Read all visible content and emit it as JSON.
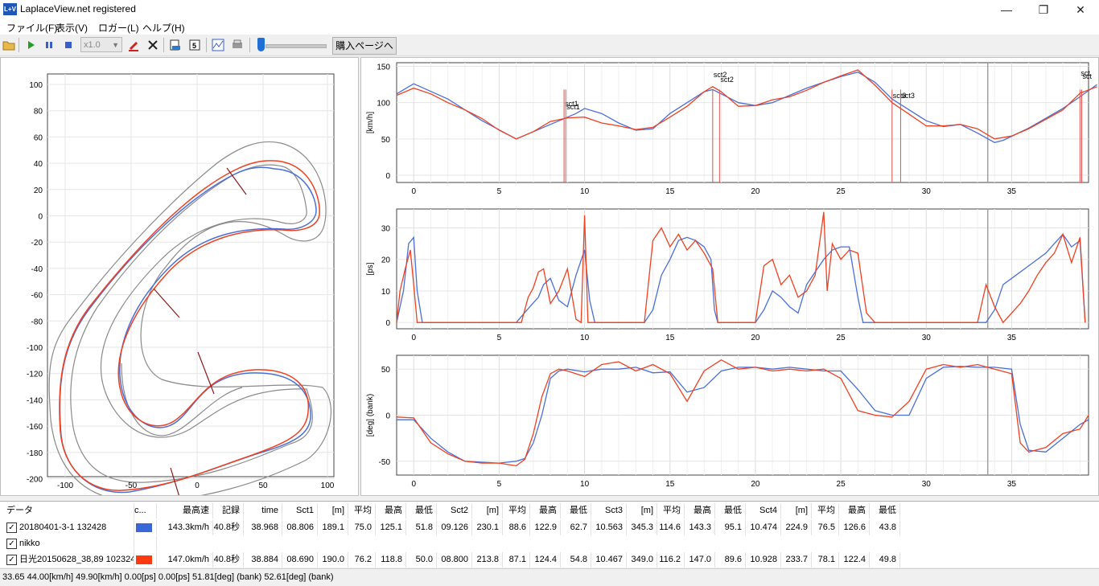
{
  "app": {
    "title": "LaplaceView.net registered",
    "icon_text": "L+V",
    "buttons": {
      "minimize": "—",
      "maximize": "❐",
      "close": "✕"
    }
  },
  "menu": [
    "ファイル(F)",
    "表示(V)",
    "ロガー(L)",
    "ヘルプ(H)"
  ],
  "toolbar": {
    "speed_value": "x1.0",
    "buy_label": "購入ページへ",
    "icons": [
      "open-folder-icon",
      "play-icon",
      "pause-icon",
      "stop-icon",
      "pen-icon",
      "delete-icon",
      "export-icon",
      "sector-icon",
      "chart-icon",
      "print-icon"
    ]
  },
  "map_chart": {
    "y_ticks": [
      "100",
      "80",
      "60",
      "40",
      "20",
      "0",
      "-20",
      "-40",
      "-60",
      "-80",
      "-100",
      "-120",
      "-140",
      "-160",
      "-180",
      "-200"
    ],
    "x_ticks": [
      "-100",
      "-50",
      "0",
      "50",
      "100"
    ]
  },
  "speed_chart": {
    "ylabel": "[km/h]",
    "y_ticks": [
      "150",
      "100",
      "50",
      "0"
    ],
    "x_ticks": [
      "0",
      "5",
      "10",
      "15",
      "20",
      "25",
      "30",
      "35"
    ],
    "markers": [
      {
        "label": "sct1",
        "x": 8.8
      },
      {
        "label": "sct1",
        "x": 8.9
      },
      {
        "label": "sct2",
        "x": 17.5
      },
      {
        "label": "sct2",
        "x": 17.9
      },
      {
        "label": "sct3",
        "x": 28.0
      },
      {
        "label": "sct3",
        "x": 28.5
      },
      {
        "label": "sct",
        "x": 39.0
      },
      {
        "label": "sct",
        "x": 39.1
      }
    ],
    "blue": [
      [
        -1,
        112
      ],
      [
        0,
        126
      ],
      [
        2,
        105
      ],
      [
        4,
        75
      ],
      [
        6,
        50
      ],
      [
        8,
        70
      ],
      [
        9.5,
        85
      ],
      [
        10,
        92
      ],
      [
        11,
        85
      ],
      [
        12,
        72
      ],
      [
        13,
        62
      ],
      [
        14,
        64
      ],
      [
        15,
        85
      ],
      [
        16,
        100
      ],
      [
        17,
        115
      ],
      [
        17.5,
        118
      ],
      [
        18,
        112
      ],
      [
        19,
        100
      ],
      [
        20,
        96
      ],
      [
        21,
        100
      ],
      [
        22,
        110
      ],
      [
        23,
        120
      ],
      [
        24,
        128
      ],
      [
        25,
        136
      ],
      [
        26,
        142
      ],
      [
        27,
        128
      ],
      [
        28,
        105
      ],
      [
        29,
        90
      ],
      [
        30,
        75
      ],
      [
        31,
        67
      ],
      [
        32,
        70
      ],
      [
        33,
        58
      ],
      [
        34,
        45
      ],
      [
        34.5,
        48
      ],
      [
        36,
        65
      ],
      [
        38,
        92
      ],
      [
        39,
        108
      ],
      [
        40,
        125
      ]
    ],
    "red": [
      [
        -1,
        110
      ],
      [
        0,
        120
      ],
      [
        1,
        112
      ],
      [
        2,
        100
      ],
      [
        3,
        90
      ],
      [
        4,
        78
      ],
      [
        5,
        62
      ],
      [
        6,
        50
      ],
      [
        7,
        60
      ],
      [
        8,
        74
      ],
      [
        9,
        79
      ],
      [
        10,
        80
      ],
      [
        11,
        72
      ],
      [
        12,
        68
      ],
      [
        13,
        63
      ],
      [
        14,
        66
      ],
      [
        15,
        80
      ],
      [
        16,
        95
      ],
      [
        17,
        115
      ],
      [
        17.5,
        122
      ],
      [
        18,
        115
      ],
      [
        19,
        95
      ],
      [
        20,
        96
      ],
      [
        21,
        104
      ],
      [
        22,
        108
      ],
      [
        23,
        117
      ],
      [
        24,
        128
      ],
      [
        25,
        137
      ],
      [
        26,
        145
      ],
      [
        27,
        124
      ],
      [
        28,
        100
      ],
      [
        29,
        84
      ],
      [
        30,
        68
      ],
      [
        31,
        68
      ],
      [
        32,
        70
      ],
      [
        33,
        64
      ],
      [
        34,
        50
      ],
      [
        35,
        54
      ],
      [
        36,
        64
      ],
      [
        38,
        90
      ],
      [
        39,
        113
      ],
      [
        40,
        122
      ]
    ],
    "cursor_x": 33.6,
    "xlim": [
      -1,
      39.5
    ],
    "ylim": [
      -10,
      155
    ]
  },
  "ps_chart": {
    "ylabel": "[ps]",
    "y_ticks": [
      "30",
      "20",
      "10",
      "0"
    ],
    "x_ticks": [
      "0",
      "5",
      "10",
      "15",
      "20",
      "25",
      "30",
      "35"
    ],
    "blue": [
      [
        -1,
        0
      ],
      [
        -0.6,
        10
      ],
      [
        -0.3,
        25
      ],
      [
        0,
        27
      ],
      [
        0.2,
        10
      ],
      [
        0.5,
        0
      ],
      [
        5,
        0
      ],
      [
        6,
        0
      ],
      [
        6.8,
        5
      ],
      [
        7.3,
        8
      ],
      [
        7.6,
        12
      ],
      [
        8,
        14
      ],
      [
        8.5,
        7
      ],
      [
        9,
        5
      ],
      [
        9.5,
        15
      ],
      [
        10,
        23
      ],
      [
        10.3,
        7
      ],
      [
        10.6,
        0
      ],
      [
        13,
        0
      ],
      [
        13.5,
        0
      ],
      [
        14,
        4
      ],
      [
        14.5,
        15
      ],
      [
        15,
        20
      ],
      [
        15.5,
        26
      ],
      [
        16,
        27
      ],
      [
        16.5,
        26
      ],
      [
        17,
        24
      ],
      [
        17.4,
        20
      ],
      [
        17.6,
        4
      ],
      [
        17.8,
        0
      ],
      [
        19,
        0
      ],
      [
        20,
        0
      ],
      [
        20.5,
        4
      ],
      [
        21,
        10
      ],
      [
        21.5,
        8
      ],
      [
        22,
        5
      ],
      [
        22.5,
        3
      ],
      [
        23,
        12
      ],
      [
        23.5,
        16
      ],
      [
        24,
        20
      ],
      [
        24.5,
        23
      ],
      [
        25,
        24
      ],
      [
        25.5,
        24
      ],
      [
        26,
        8
      ],
      [
        26.3,
        0
      ],
      [
        33.5,
        0
      ],
      [
        34,
        4
      ],
      [
        34.5,
        12
      ],
      [
        35,
        14
      ],
      [
        36,
        18
      ],
      [
        37,
        22
      ],
      [
        37.5,
        25
      ],
      [
        38,
        28
      ],
      [
        38.5,
        24
      ],
      [
        39,
        26
      ],
      [
        39.3,
        0
      ]
    ],
    "red": [
      [
        -1,
        0
      ],
      [
        -0.8,
        10
      ],
      [
        -0.5,
        17
      ],
      [
        -0.2,
        23
      ],
      [
        0,
        12
      ],
      [
        0.2,
        0
      ],
      [
        5,
        0
      ],
      [
        6.3,
        0
      ],
      [
        6.7,
        8
      ],
      [
        7,
        11
      ],
      [
        7.3,
        16
      ],
      [
        7.6,
        17
      ],
      [
        8,
        6
      ],
      [
        8.5,
        10
      ],
      [
        9,
        17
      ],
      [
        9.5,
        1
      ],
      [
        9.8,
        0
      ],
      [
        10,
        34
      ],
      [
        10.2,
        0
      ],
      [
        13,
        0
      ],
      [
        13.5,
        0
      ],
      [
        14,
        26
      ],
      [
        14.5,
        30
      ],
      [
        15,
        24
      ],
      [
        15.5,
        28
      ],
      [
        16,
        23
      ],
      [
        16.5,
        26
      ],
      [
        17,
        22
      ],
      [
        17.5,
        17
      ],
      [
        17.8,
        0
      ],
      [
        19,
        0
      ],
      [
        20,
        0
      ],
      [
        20.5,
        18
      ],
      [
        21,
        20
      ],
      [
        21.5,
        12
      ],
      [
        22,
        15
      ],
      [
        22.5,
        8
      ],
      [
        23,
        10
      ],
      [
        23.5,
        15
      ],
      [
        24,
        35
      ],
      [
        24.2,
        10
      ],
      [
        24.5,
        25
      ],
      [
        25,
        20
      ],
      [
        25.5,
        23
      ],
      [
        26,
        22
      ],
      [
        26.5,
        3
      ],
      [
        27,
        0
      ],
      [
        33,
        0
      ],
      [
        33.5,
        12
      ],
      [
        34,
        5
      ],
      [
        34.5,
        0
      ],
      [
        35.5,
        6
      ],
      [
        36,
        10
      ],
      [
        36.5,
        15
      ],
      [
        37,
        19
      ],
      [
        37.5,
        22
      ],
      [
        38,
        28
      ],
      [
        38.5,
        19
      ],
      [
        39,
        27
      ],
      [
        39.3,
        0
      ]
    ],
    "cursor_x": 33.6,
    "xlim": [
      -1,
      39.5
    ],
    "ylim": [
      -2,
      36
    ]
  },
  "bank_chart": {
    "ylabel": "[deg] (bank)",
    "y_ticks": [
      "50",
      "0",
      "-50"
    ],
    "x_ticks": [
      "0",
      "5",
      "10",
      "15",
      "20",
      "25",
      "30",
      "35"
    ],
    "blue": [
      [
        -1,
        -5
      ],
      [
        0,
        -5
      ],
      [
        1,
        -25
      ],
      [
        2,
        -40
      ],
      [
        3,
        -50
      ],
      [
        4,
        -51
      ],
      [
        5,
        -52
      ],
      [
        6,
        -50
      ],
      [
        6.5,
        -47
      ],
      [
        7,
        -30
      ],
      [
        7.5,
        0
      ],
      [
        8,
        40
      ],
      [
        8.5,
        48
      ],
      [
        9,
        50
      ],
      [
        10,
        47
      ],
      [
        11,
        50
      ],
      [
        12,
        50
      ],
      [
        13,
        52
      ],
      [
        14,
        46
      ],
      [
        15,
        47
      ],
      [
        16,
        25
      ],
      [
        17,
        30
      ],
      [
        18,
        48
      ],
      [
        19,
        52
      ],
      [
        20,
        52
      ],
      [
        21,
        50
      ],
      [
        22,
        52
      ],
      [
        23,
        50
      ],
      [
        24,
        48
      ],
      [
        25,
        48
      ],
      [
        26,
        28
      ],
      [
        27,
        5
      ],
      [
        28,
        0
      ],
      [
        29,
        0
      ],
      [
        30,
        40
      ],
      [
        31,
        52
      ],
      [
        32,
        53
      ],
      [
        33,
        52
      ],
      [
        34,
        52
      ],
      [
        35,
        50
      ],
      [
        35.5,
        -10
      ],
      [
        36,
        -38
      ],
      [
        37,
        -40
      ],
      [
        38,
        -25
      ],
      [
        39,
        -10
      ],
      [
        39.5,
        -5
      ]
    ],
    "red": [
      [
        -1,
        -2
      ],
      [
        0,
        -3
      ],
      [
        1,
        -30
      ],
      [
        2,
        -42
      ],
      [
        3,
        -50
      ],
      [
        4,
        -52
      ],
      [
        5,
        -52
      ],
      [
        6,
        -55
      ],
      [
        6.5,
        -48
      ],
      [
        7,
        -20
      ],
      [
        7.5,
        20
      ],
      [
        8,
        45
      ],
      [
        8.5,
        50
      ],
      [
        9,
        48
      ],
      [
        10,
        42
      ],
      [
        11,
        55
      ],
      [
        12,
        58
      ],
      [
        13,
        48
      ],
      [
        14,
        55
      ],
      [
        15,
        45
      ],
      [
        16,
        15
      ],
      [
        17,
        48
      ],
      [
        18,
        60
      ],
      [
        19,
        50
      ],
      [
        20,
        52
      ],
      [
        21,
        48
      ],
      [
        22,
        50
      ],
      [
        23,
        48
      ],
      [
        24,
        50
      ],
      [
        25,
        40
      ],
      [
        26,
        5
      ],
      [
        27,
        0
      ],
      [
        28,
        -2
      ],
      [
        29,
        15
      ],
      [
        30,
        50
      ],
      [
        31,
        55
      ],
      [
        32,
        52
      ],
      [
        33,
        55
      ],
      [
        34,
        50
      ],
      [
        35,
        45
      ],
      [
        35.5,
        -30
      ],
      [
        36,
        -40
      ],
      [
        37,
        -35
      ],
      [
        38,
        -20
      ],
      [
        39,
        -15
      ],
      [
        39.5,
        0
      ]
    ],
    "cursor_x": 33.6,
    "xlim": [
      -1,
      39.5
    ],
    "ylim": [
      -65,
      65
    ]
  },
  "table": {
    "headers": [
      "データ",
      "c...",
      "最高速",
      "記録",
      "time",
      "Sct1",
      "[m]",
      "平均",
      "最高",
      "最低",
      "Sct2",
      "[m]",
      "平均",
      "最高",
      "最低",
      "Sct3",
      "[m]",
      "平均",
      "最高",
      "最低",
      "Sct4",
      "[m]",
      "平均",
      "最高",
      "最低"
    ],
    "rows": [
      {
        "name": "20180401-3-1 132428",
        "color": "#3a67d8",
        "checked": "✓",
        "cells": [
          "143.3km/h",
          "40.8秒",
          "38.968",
          "08.806",
          "189.1",
          "75.0",
          "125.1",
          "51.8",
          "09.126",
          "230.1",
          "88.6",
          "122.9",
          "62.7",
          "10.563",
          "345.3",
          "114.6",
          "143.3",
          "95.1",
          "10.474",
          "224.9",
          "76.5",
          "126.6",
          "43.8"
        ]
      },
      {
        "name": "nikko",
        "color": "",
        "checked": "✓",
        "cells": []
      },
      {
        "name": "日光20150628_38,89 102324",
        "color": "#ff3a10",
        "checked": "✓",
        "cells": [
          "147.0km/h",
          "40.8秒",
          "38.884",
          "08.690",
          "190.0",
          "76.2",
          "118.8",
          "50.0",
          "08.800",
          "213.8",
          "87.1",
          "124.4",
          "54.8",
          "10.467",
          "349.0",
          "116.2",
          "147.0",
          "89.6",
          "10.928",
          "233.7",
          "78.1",
          "122.4",
          "49.8"
        ]
      }
    ]
  },
  "status": "33.65 44.00[km/h] 49.90[km/h]  0.00[ps] 0.00[ps]  51.81[deg] (bank) 52.61[deg] (bank)",
  "colors": {
    "blue": "#4a6fd8",
    "red": "#f04020",
    "grid": "#e4e4e4",
    "cursor": "#a0a0a0"
  }
}
